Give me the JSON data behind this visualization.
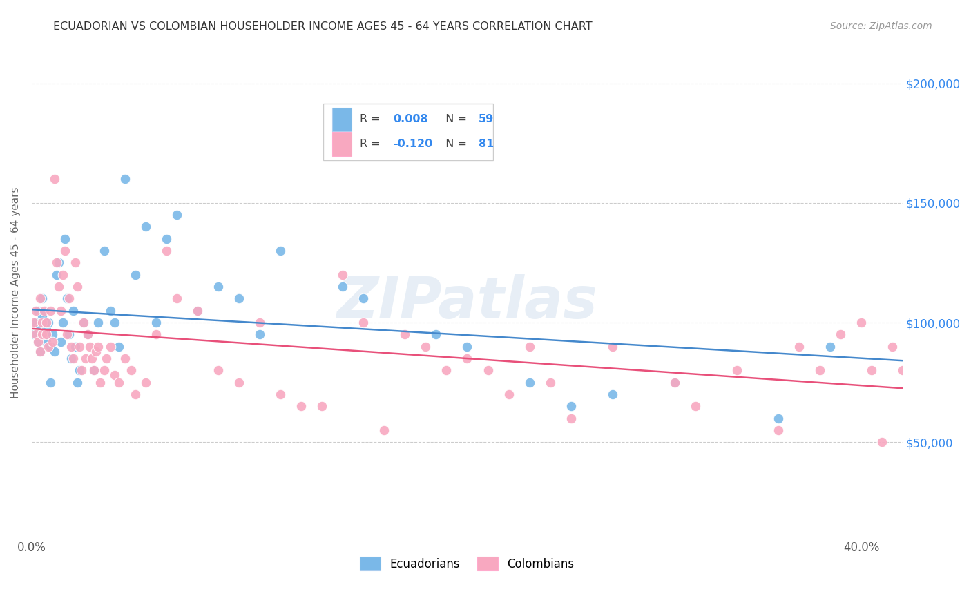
{
  "title": "ECUADORIAN VS COLOMBIAN HOUSEHOLDER INCOME AGES 45 - 64 YEARS CORRELATION CHART",
  "source": "Source: ZipAtlas.com",
  "ylabel": "Householder Income Ages 45 - 64 years",
  "watermark": "ZIPatlas",
  "ecuadorian_color": "#7ab8e8",
  "colombian_color": "#f8a8c0",
  "trend_ecuadorian_color": "#4488cc",
  "trend_colombian_color": "#e8507a",
  "background_color": "#ffffff",
  "grid_color": "#cccccc",
  "xlim": [
    0.0,
    0.42
  ],
  "ylim": [
    10000,
    215000
  ],
  "yticks": [
    50000,
    100000,
    150000,
    200000
  ],
  "xticks": [
    0.0,
    0.05,
    0.1,
    0.15,
    0.2,
    0.25,
    0.3,
    0.35,
    0.4
  ],
  "ecuadorian_x": [
    0.001,
    0.002,
    0.003,
    0.003,
    0.004,
    0.004,
    0.005,
    0.005,
    0.006,
    0.006,
    0.007,
    0.007,
    0.008,
    0.009,
    0.009,
    0.01,
    0.011,
    0.012,
    0.013,
    0.014,
    0.015,
    0.016,
    0.017,
    0.018,
    0.019,
    0.02,
    0.021,
    0.022,
    0.023,
    0.025,
    0.027,
    0.03,
    0.032,
    0.035,
    0.038,
    0.04,
    0.042,
    0.045,
    0.05,
    0.055,
    0.06,
    0.065,
    0.07,
    0.08,
    0.09,
    0.1,
    0.11,
    0.12,
    0.15,
    0.16,
    0.175,
    0.195,
    0.21,
    0.24,
    0.26,
    0.28,
    0.31,
    0.36,
    0.385
  ],
  "ecuadorian_y": [
    95000,
    100000,
    92000,
    105000,
    98000,
    88000,
    110000,
    103000,
    95000,
    100000,
    92000,
    97000,
    100000,
    75000,
    90000,
    95000,
    88000,
    120000,
    125000,
    92000,
    100000,
    135000,
    110000,
    95000,
    85000,
    105000,
    90000,
    75000,
    80000,
    100000,
    95000,
    80000,
    100000,
    130000,
    105000,
    100000,
    90000,
    160000,
    120000,
    140000,
    100000,
    135000,
    145000,
    105000,
    115000,
    110000,
    95000,
    130000,
    115000,
    110000,
    175000,
    95000,
    90000,
    75000,
    65000,
    70000,
    75000,
    60000,
    90000
  ],
  "colombian_x": [
    0.001,
    0.002,
    0.002,
    0.003,
    0.004,
    0.004,
    0.005,
    0.005,
    0.006,
    0.007,
    0.007,
    0.008,
    0.009,
    0.01,
    0.011,
    0.012,
    0.013,
    0.014,
    0.015,
    0.016,
    0.017,
    0.018,
    0.019,
    0.02,
    0.021,
    0.022,
    0.023,
    0.024,
    0.025,
    0.026,
    0.027,
    0.028,
    0.029,
    0.03,
    0.031,
    0.032,
    0.033,
    0.035,
    0.036,
    0.038,
    0.04,
    0.042,
    0.045,
    0.048,
    0.05,
    0.055,
    0.06,
    0.065,
    0.07,
    0.08,
    0.09,
    0.1,
    0.11,
    0.12,
    0.13,
    0.14,
    0.15,
    0.16,
    0.17,
    0.18,
    0.19,
    0.2,
    0.21,
    0.22,
    0.23,
    0.24,
    0.25,
    0.26,
    0.28,
    0.31,
    0.32,
    0.34,
    0.36,
    0.37,
    0.38,
    0.39,
    0.4,
    0.405,
    0.41,
    0.415,
    0.42
  ],
  "colombian_y": [
    100000,
    95000,
    105000,
    92000,
    110000,
    88000,
    100000,
    95000,
    105000,
    100000,
    95000,
    90000,
    105000,
    92000,
    160000,
    125000,
    115000,
    105000,
    120000,
    130000,
    95000,
    110000,
    90000,
    85000,
    125000,
    115000,
    90000,
    80000,
    100000,
    85000,
    95000,
    90000,
    85000,
    80000,
    88000,
    90000,
    75000,
    80000,
    85000,
    90000,
    78000,
    75000,
    85000,
    80000,
    70000,
    75000,
    95000,
    130000,
    110000,
    105000,
    80000,
    75000,
    100000,
    70000,
    65000,
    65000,
    120000,
    100000,
    55000,
    95000,
    90000,
    80000,
    85000,
    80000,
    70000,
    90000,
    75000,
    60000,
    90000,
    75000,
    65000,
    80000,
    55000,
    90000,
    80000,
    95000,
    100000,
    80000,
    50000,
    90000,
    80000
  ]
}
